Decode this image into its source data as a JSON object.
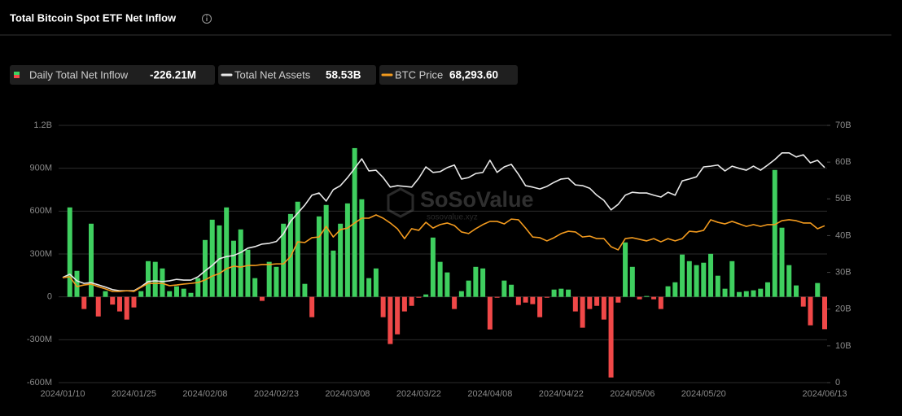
{
  "header": {
    "title": "Total Bitcoin Spot ETF Net Inflow"
  },
  "watermark": {
    "brand": "SoSoValue",
    "site": "sosovalue.xyz"
  },
  "chart_data": {
    "type": "combo",
    "categories": [
      "2024/01/10",
      null,
      null,
      null,
      null,
      null,
      null,
      null,
      null,
      null,
      "2024/01/25",
      null,
      null,
      null,
      null,
      null,
      null,
      null,
      null,
      null,
      "2024/02/08",
      null,
      null,
      null,
      null,
      null,
      null,
      null,
      null,
      null,
      "2024/02/23",
      null,
      null,
      null,
      null,
      null,
      null,
      null,
      null,
      null,
      "2024/03/08",
      null,
      null,
      null,
      null,
      null,
      null,
      null,
      null,
      null,
      "2024/03/22",
      null,
      null,
      null,
      null,
      null,
      null,
      null,
      null,
      null,
      "2024/04/08",
      null,
      null,
      null,
      null,
      null,
      null,
      null,
      null,
      null,
      "2024/04/22",
      null,
      null,
      null,
      null,
      null,
      null,
      null,
      null,
      null,
      "2024/05/06",
      null,
      null,
      null,
      null,
      null,
      null,
      null,
      null,
      null,
      "2024/05/20",
      null,
      null,
      null,
      null,
      null,
      null,
      null,
      null,
      null,
      null,
      null,
      null,
      null,
      null,
      null,
      null,
      "2024/06/13"
    ],
    "series": [
      {
        "name": "Daily Total Net Inflow",
        "type": "bar",
        "color": "#3fcf5f",
        "negative_color": "#f04848",
        "legend_value": "-226.21M",
        "values": [
          null,
          626,
          182,
          -85,
          512,
          -137,
          40,
          -54,
          -102,
          -159,
          -74,
          40,
          250,
          245,
          199,
          40,
          74,
          57,
          28,
          131,
          398,
          540,
          500,
          626,
          393,
          472,
          330,
          131,
          -28,
          245,
          210,
          512,
          580,
          666,
          91,
          -142,
          563,
          643,
          324,
          512,
          654,
          1041,
          683,
          131,
          199,
          -142,
          -330,
          -262,
          -102,
          -63,
          -6,
          17,
          415,
          245,
          171,
          -85,
          40,
          114,
          210,
          199,
          -228,
          -6,
          114,
          85,
          -57,
          -40,
          -51,
          -142,
          -6,
          51,
          57,
          51,
          -102,
          -216,
          -85,
          -63,
          -159,
          -564,
          -40,
          381,
          210,
          -17,
          6,
          -17,
          -85,
          74,
          102,
          296,
          250,
          222,
          239,
          301,
          148,
          57,
          250,
          34,
          40,
          46,
          57,
          102,
          888,
          484,
          222,
          80,
          -68,
          -199,
          97,
          -226.21
        ]
      },
      {
        "name": "Total Net Assets",
        "type": "line",
        "axis": "y2",
        "color": "#e8e8e8",
        "legend_value": "58.53B",
        "values": [
          28.6,
          29.5,
          27.7,
          27,
          27.2,
          26.6,
          26,
          25.3,
          25,
          25,
          25,
          26.1,
          27.5,
          27.7,
          27.5,
          27.7,
          28.1,
          27.9,
          27.9,
          28.8,
          30.4,
          31.9,
          33.7,
          34.3,
          34.6,
          35.4,
          36.6,
          37,
          37.7,
          37.9,
          38.4,
          40.5,
          43.9,
          46.1,
          48.3,
          51,
          51.6,
          49.4,
          52.5,
          53.6,
          55.8,
          58.3,
          60.9,
          57.6,
          57.8,
          55.8,
          53.2,
          53.6,
          53.4,
          53.2,
          55.6,
          58.7,
          57.2,
          57.4,
          58.5,
          59.2,
          55.4,
          55.8,
          56.9,
          57.2,
          60.5,
          57.2,
          58.7,
          59.4,
          56.7,
          53.6,
          53.2,
          52.7,
          53.4,
          54.5,
          55.4,
          55.6,
          53.8,
          53.6,
          52.9,
          51,
          49.6,
          47,
          48.5,
          51,
          51.8,
          51.6,
          51.6,
          51,
          50.5,
          51.8,
          51,
          54.9,
          55.4,
          56,
          58.7,
          58.9,
          59.2,
          57.6,
          58.9,
          58.3,
          57.8,
          58.9,
          57.8,
          59.2,
          60.7,
          62.5,
          62.5,
          61.4,
          62,
          59.8,
          60.5,
          58.53
        ]
      },
      {
        "name": "BTC Price",
        "type": "line",
        "axis": "y3",
        "color": "#f29a1e",
        "legend_value": "68,293.60",
        "values": [
          45700,
          46100,
          41800,
          42500,
          42900,
          41800,
          40800,
          39700,
          39700,
          40000,
          39700,
          41500,
          43200,
          43200,
          43200,
          42200,
          42500,
          42900,
          43200,
          43600,
          44700,
          46400,
          47500,
          49600,
          50700,
          50300,
          51000,
          51000,
          51400,
          51400,
          51700,
          51700,
          54900,
          61300,
          61000,
          63100,
          63400,
          68000,
          63400,
          66600,
          67300,
          69500,
          71600,
          71600,
          73000,
          71600,
          69500,
          67000,
          62700,
          67000,
          66300,
          69800,
          67300,
          68800,
          69500,
          68400,
          65600,
          64900,
          67000,
          68800,
          70200,
          70200,
          69100,
          71200,
          70900,
          67300,
          63400,
          63100,
          61700,
          63100,
          64900,
          65900,
          65600,
          63400,
          63800,
          62700,
          62700,
          59200,
          57800,
          62700,
          63100,
          62400,
          61700,
          62700,
          61300,
          62700,
          61700,
          62700,
          65900,
          65600,
          66300,
          70900,
          69800,
          69100,
          70200,
          69100,
          68000,
          68800,
          68000,
          68800,
          68800,
          70500,
          70900,
          70500,
          69500,
          69500,
          67000,
          68293.6
        ]
      }
    ],
    "ylim": [
      -600,
      1200
    ],
    "yticks": [
      {
        "value": 1200,
        "label": "1.2B"
      },
      {
        "value": 900,
        "label": "900M"
      },
      {
        "value": 600,
        "label": "600M"
      },
      {
        "value": 300,
        "label": "300M"
      },
      0,
      {
        "value": -300,
        "label": "-300M"
      },
      {
        "value": -600,
        "label": "-600M"
      }
    ],
    "y2lim": [
      0,
      70
    ],
    "y2ticks": [
      {
        "value": 70,
        "label": "70B"
      },
      {
        "value": 60,
        "label": "60B"
      },
      {
        "value": 50,
        "label": "50B"
      },
      {
        "value": 40,
        "label": "40B"
      },
      {
        "value": 30,
        "label": "30B"
      },
      {
        "value": 20,
        "label": "20B"
      },
      {
        "value": 10,
        "label": "10B"
      },
      0
    ],
    "y3lim": [
      0,
      112000
    ],
    "grid": true
  }
}
